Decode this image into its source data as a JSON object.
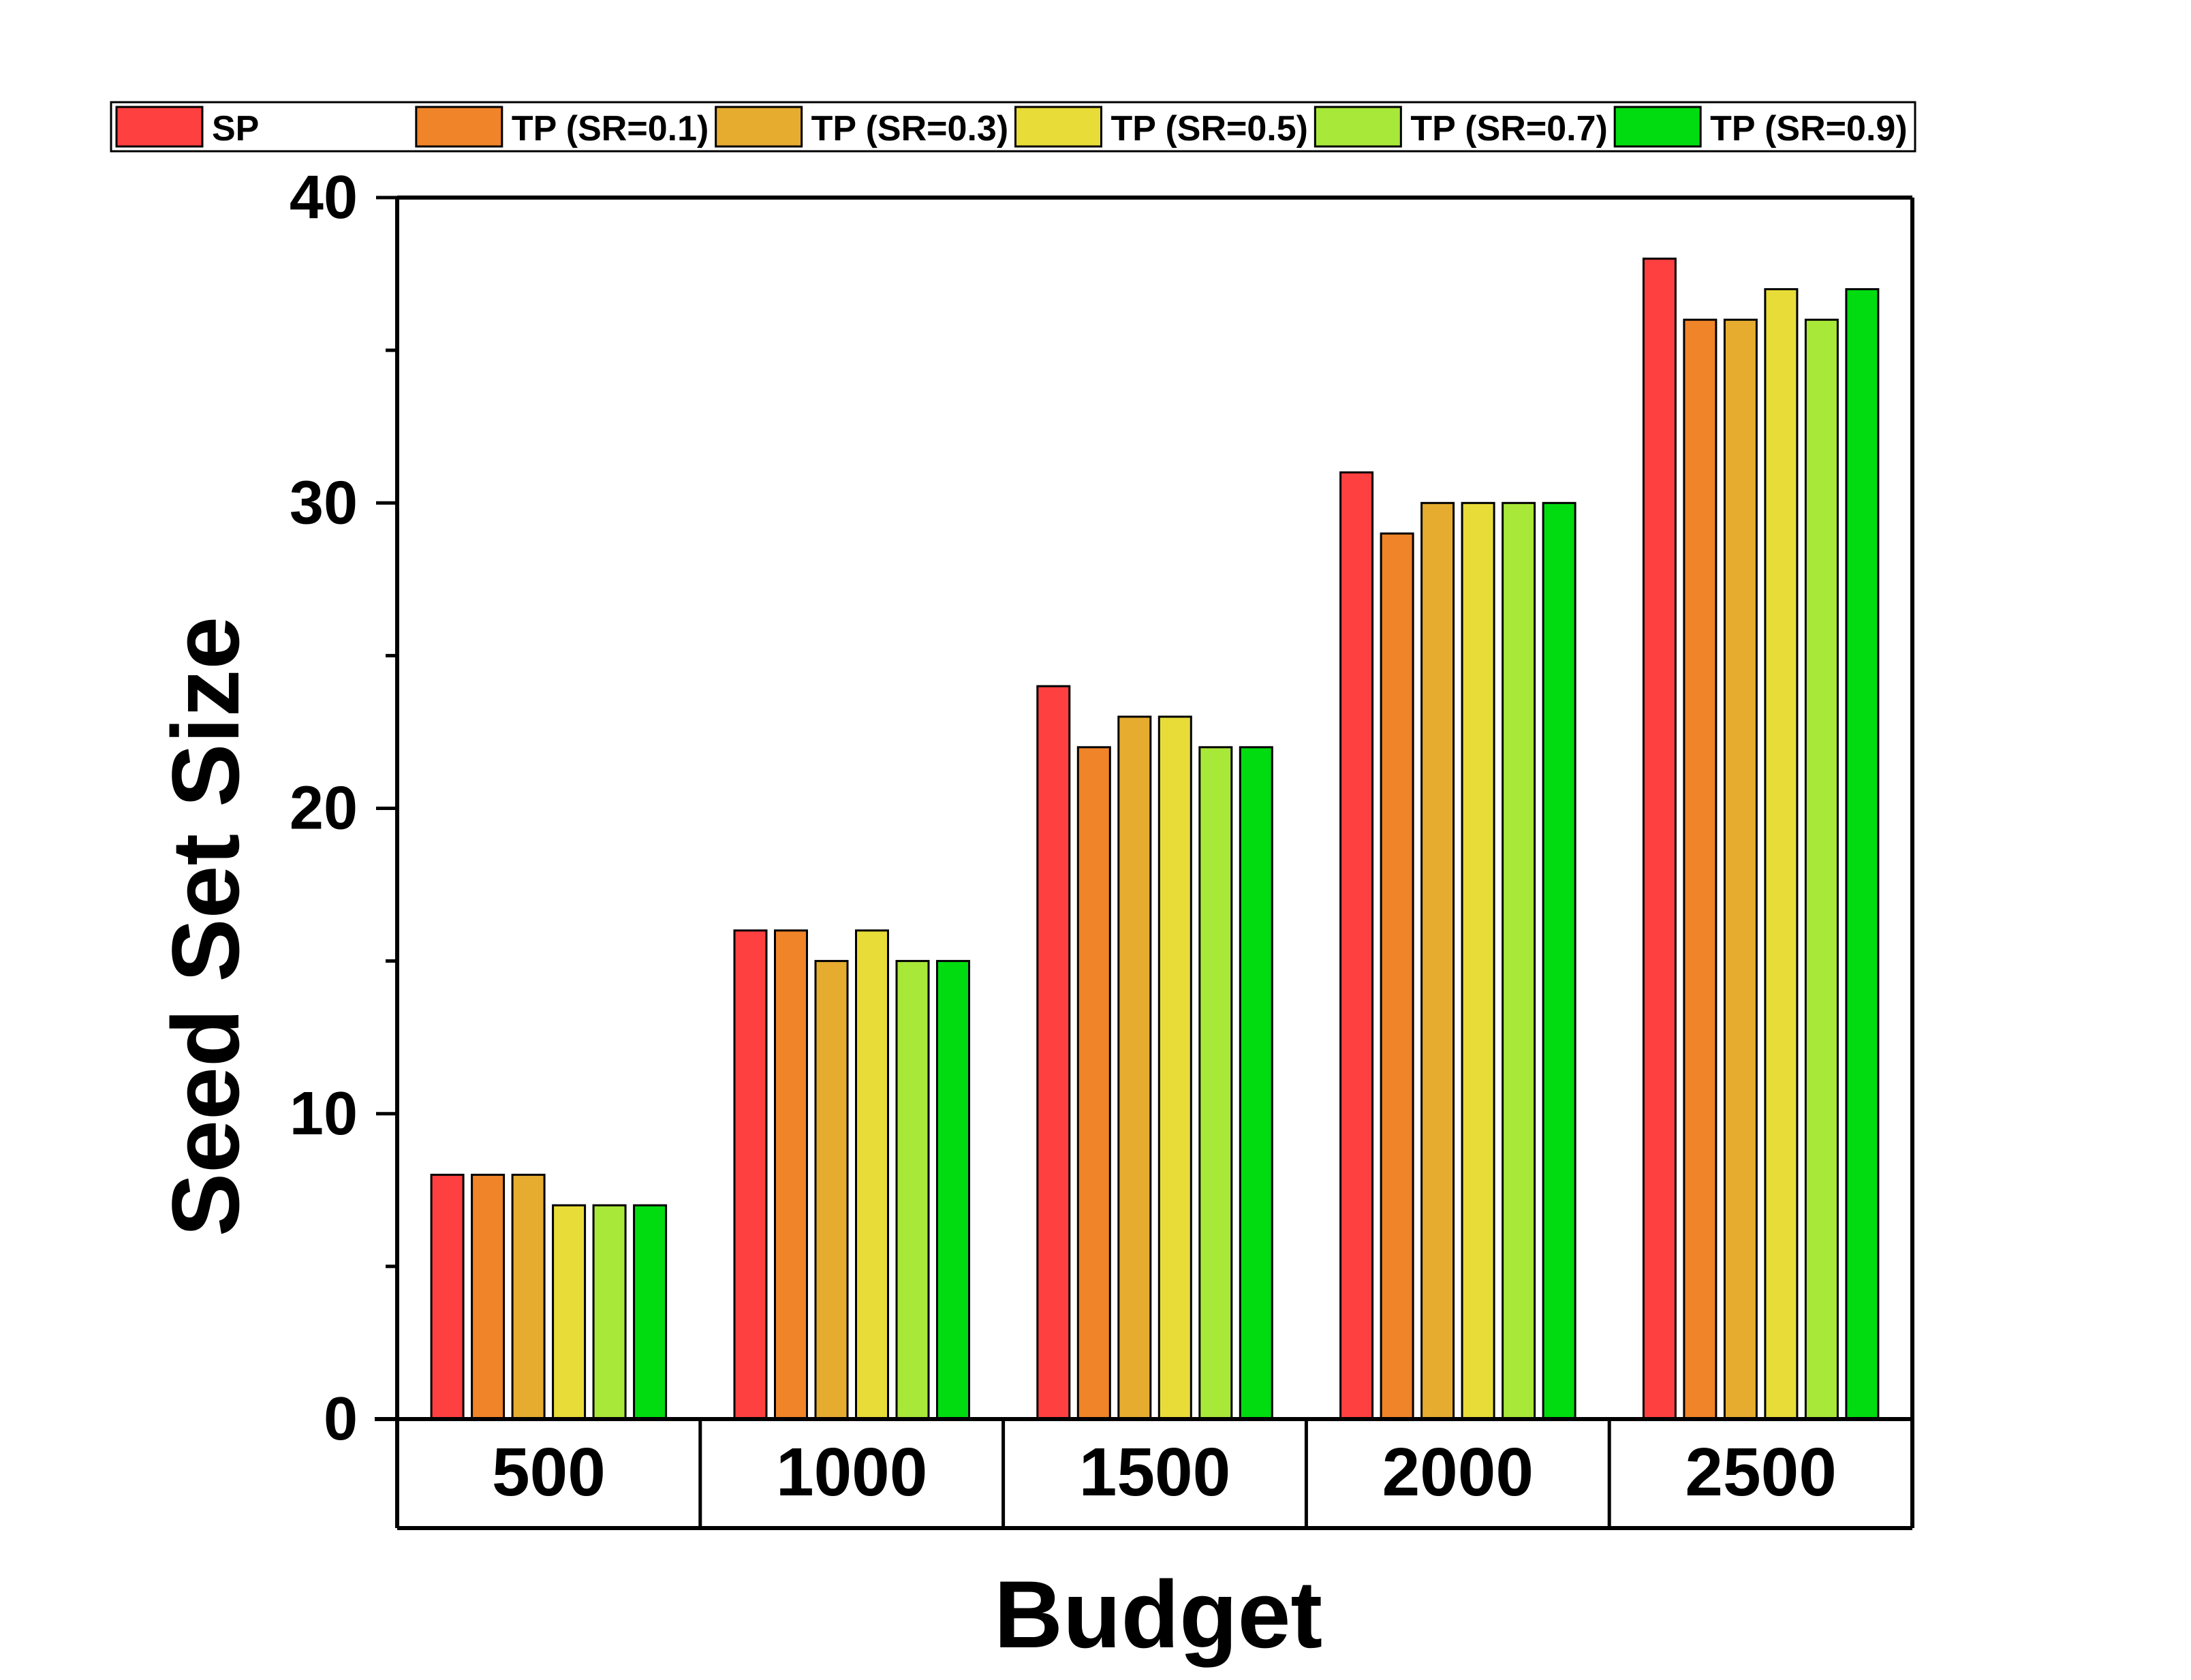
{
  "chart_data": {
    "type": "bar",
    "title": "",
    "xlabel": "Budget",
    "ylabel": "Seed Set Size",
    "categories": [
      "500",
      "1000",
      "1500",
      "2000",
      "2500"
    ],
    "ylim": [
      0,
      40
    ],
    "yticks": [
      0,
      10,
      20,
      30,
      40
    ],
    "grid": false,
    "legend_position": "top",
    "series": [
      {
        "name": "SP",
        "color": "#ff4040",
        "values": [
          8,
          16,
          24,
          31,
          38
        ]
      },
      {
        "name": "TP (SR=0.1)",
        "color": "#f08428",
        "values": [
          8,
          16,
          22,
          29,
          36
        ]
      },
      {
        "name": "TP (SR=0.3)",
        "color": "#e6ac30",
        "values": [
          8,
          15,
          23,
          30,
          36
        ]
      },
      {
        "name": "TP (SR=0.5)",
        "color": "#e8dc38",
        "values": [
          7,
          16,
          23,
          30,
          37
        ]
      },
      {
        "name": "TP (SR=0.7)",
        "color": "#a8e838",
        "values": [
          7,
          15,
          22,
          30,
          36
        ]
      },
      {
        "name": "TP (SR=0.9)",
        "color": "#00dc10",
        "values": [
          7,
          15,
          22,
          30,
          37
        ]
      }
    ]
  }
}
